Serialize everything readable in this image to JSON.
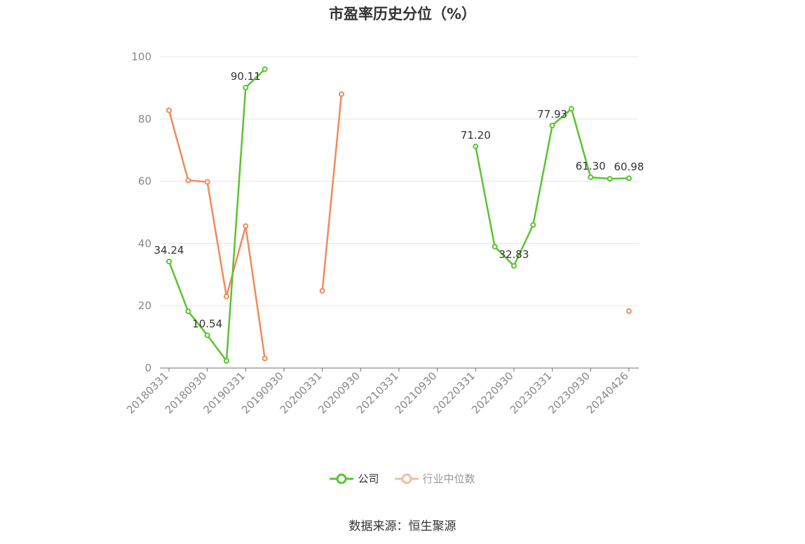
{
  "title": "市盈率历史分位（%）",
  "source": "数据来源：恒生聚源",
  "legend": [
    {
      "name": "公司",
      "color": "#5ac430",
      "active": true
    },
    {
      "name": "行业中位数",
      "color": "#f4bba6",
      "active": false
    }
  ],
  "chart_data": {
    "type": "line",
    "title": "市盈率历史分位（%）",
    "ylim": [
      0,
      100
    ],
    "y_ticks": [
      0,
      20,
      40,
      60,
      80,
      100
    ],
    "categories": [
      "20180331",
      "20180630",
      "20180930",
      "20181231",
      "20190331",
      "20190630",
      "20190930",
      "20191231",
      "20200331",
      "20200630",
      "20200930",
      "20201231",
      "20210331",
      "20210630",
      "20210930",
      "20211231",
      "20220331",
      "20220630",
      "20220930",
      "20221231",
      "20230331",
      "20230630",
      "20230930",
      "20231231",
      "20240426"
    ],
    "x_tick_labels": [
      "20180331",
      "20180930",
      "20190331",
      "20190930",
      "20200331",
      "20200930",
      "20210331",
      "20210930",
      "20220331",
      "20220930",
      "20230331",
      "20230930",
      "20240426"
    ],
    "grid": true,
    "legend_position": "bottom",
    "series": [
      {
        "name": "公司",
        "color": "#5ac430",
        "values": [
          34.24,
          18.2,
          10.54,
          2.3,
          90.11,
          96.0,
          null,
          null,
          null,
          null,
          null,
          null,
          null,
          null,
          null,
          null,
          71.2,
          39.0,
          32.83,
          46.0,
          77.93,
          83.3,
          61.3,
          60.8,
          60.98
        ],
        "labels": {
          "0": "34.24",
          "2": "10.54",
          "4": "90.11",
          "16": "71.20",
          "18": "32.83",
          "20": "77.93",
          "22": "61.30",
          "24": "60.98"
        }
      },
      {
        "name": "行业中位数",
        "color": "#f08a5d",
        "values": [
          82.8,
          60.3,
          59.8,
          23.0,
          45.6,
          3.1,
          null,
          null,
          24.8,
          88.0,
          null,
          null,
          null,
          null,
          null,
          null,
          null,
          null,
          null,
          null,
          null,
          null,
          null,
          null,
          18.3
        ],
        "labels": {}
      }
    ]
  }
}
